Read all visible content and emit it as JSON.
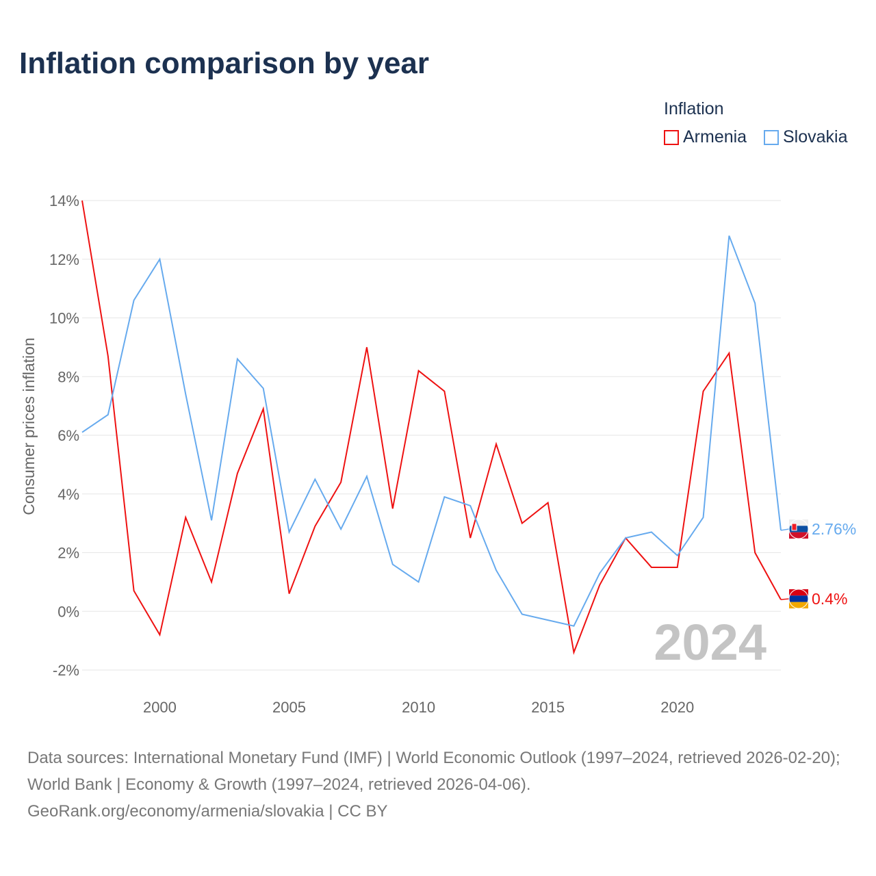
{
  "title": "Inflation comparison by year",
  "legend": {
    "title": "Inflation",
    "items": [
      {
        "name": "Armenia",
        "color": "#ee1111"
      },
      {
        "name": "Slovakia",
        "color": "#66aaee"
      }
    ]
  },
  "watermark_year": "2024",
  "source": {
    "line1": "Data sources: International Monetary Fund (IMF) | World Economic Outlook (1997–2024, retrieved 2026-02-20); World Bank | Economy & Growth (1997–2024, retrieved 2026-04-06).",
    "line2": "GeoRank.org/economy/armenia/slovakia | CC BY"
  },
  "chart_data": {
    "type": "line",
    "title": "Inflation comparison by year",
    "xlabel": "",
    "ylabel": "Consumer prices inflation",
    "xlim": [
      1997,
      2024
    ],
    "ylim": [
      -2,
      14
    ],
    "x_ticks": [
      2000,
      2005,
      2010,
      2015,
      2020
    ],
    "y_ticks": [
      -2,
      0,
      2,
      4,
      6,
      8,
      10,
      12,
      14
    ],
    "y_tick_labels": [
      "-2%",
      "0%",
      "2%",
      "4%",
      "6%",
      "8%",
      "10%",
      "12%",
      "14%"
    ],
    "x": [
      1997,
      1998,
      1999,
      2000,
      2001,
      2002,
      2003,
      2004,
      2005,
      2006,
      2007,
      2008,
      2009,
      2010,
      2011,
      2012,
      2013,
      2014,
      2015,
      2016,
      2017,
      2018,
      2019,
      2020,
      2021,
      2022,
      2023,
      2024
    ],
    "series": [
      {
        "name": "Armenia",
        "color": "#ee1111",
        "end_label": "0.4%",
        "values": [
          14.0,
          8.7,
          0.7,
          -0.8,
          3.2,
          1.0,
          4.7,
          6.9,
          0.6,
          2.9,
          4.4,
          9.0,
          3.5,
          8.2,
          7.5,
          2.5,
          5.7,
          3.0,
          3.7,
          -1.4,
          0.9,
          2.5,
          1.5,
          1.5,
          7.5,
          8.8,
          2.0,
          0.4
        ]
      },
      {
        "name": "Slovakia",
        "color": "#66aaee",
        "end_label": "2.76%",
        "values": [
          6.1,
          6.7,
          10.6,
          12.0,
          7.4,
          3.1,
          8.6,
          7.6,
          2.7,
          4.5,
          2.8,
          4.6,
          1.6,
          1.0,
          3.9,
          3.6,
          1.4,
          -0.1,
          -0.3,
          -0.5,
          1.3,
          2.5,
          2.7,
          1.9,
          3.2,
          12.8,
          10.5,
          2.76
        ]
      }
    ],
    "grid": true,
    "legend_position": "top-right"
  }
}
